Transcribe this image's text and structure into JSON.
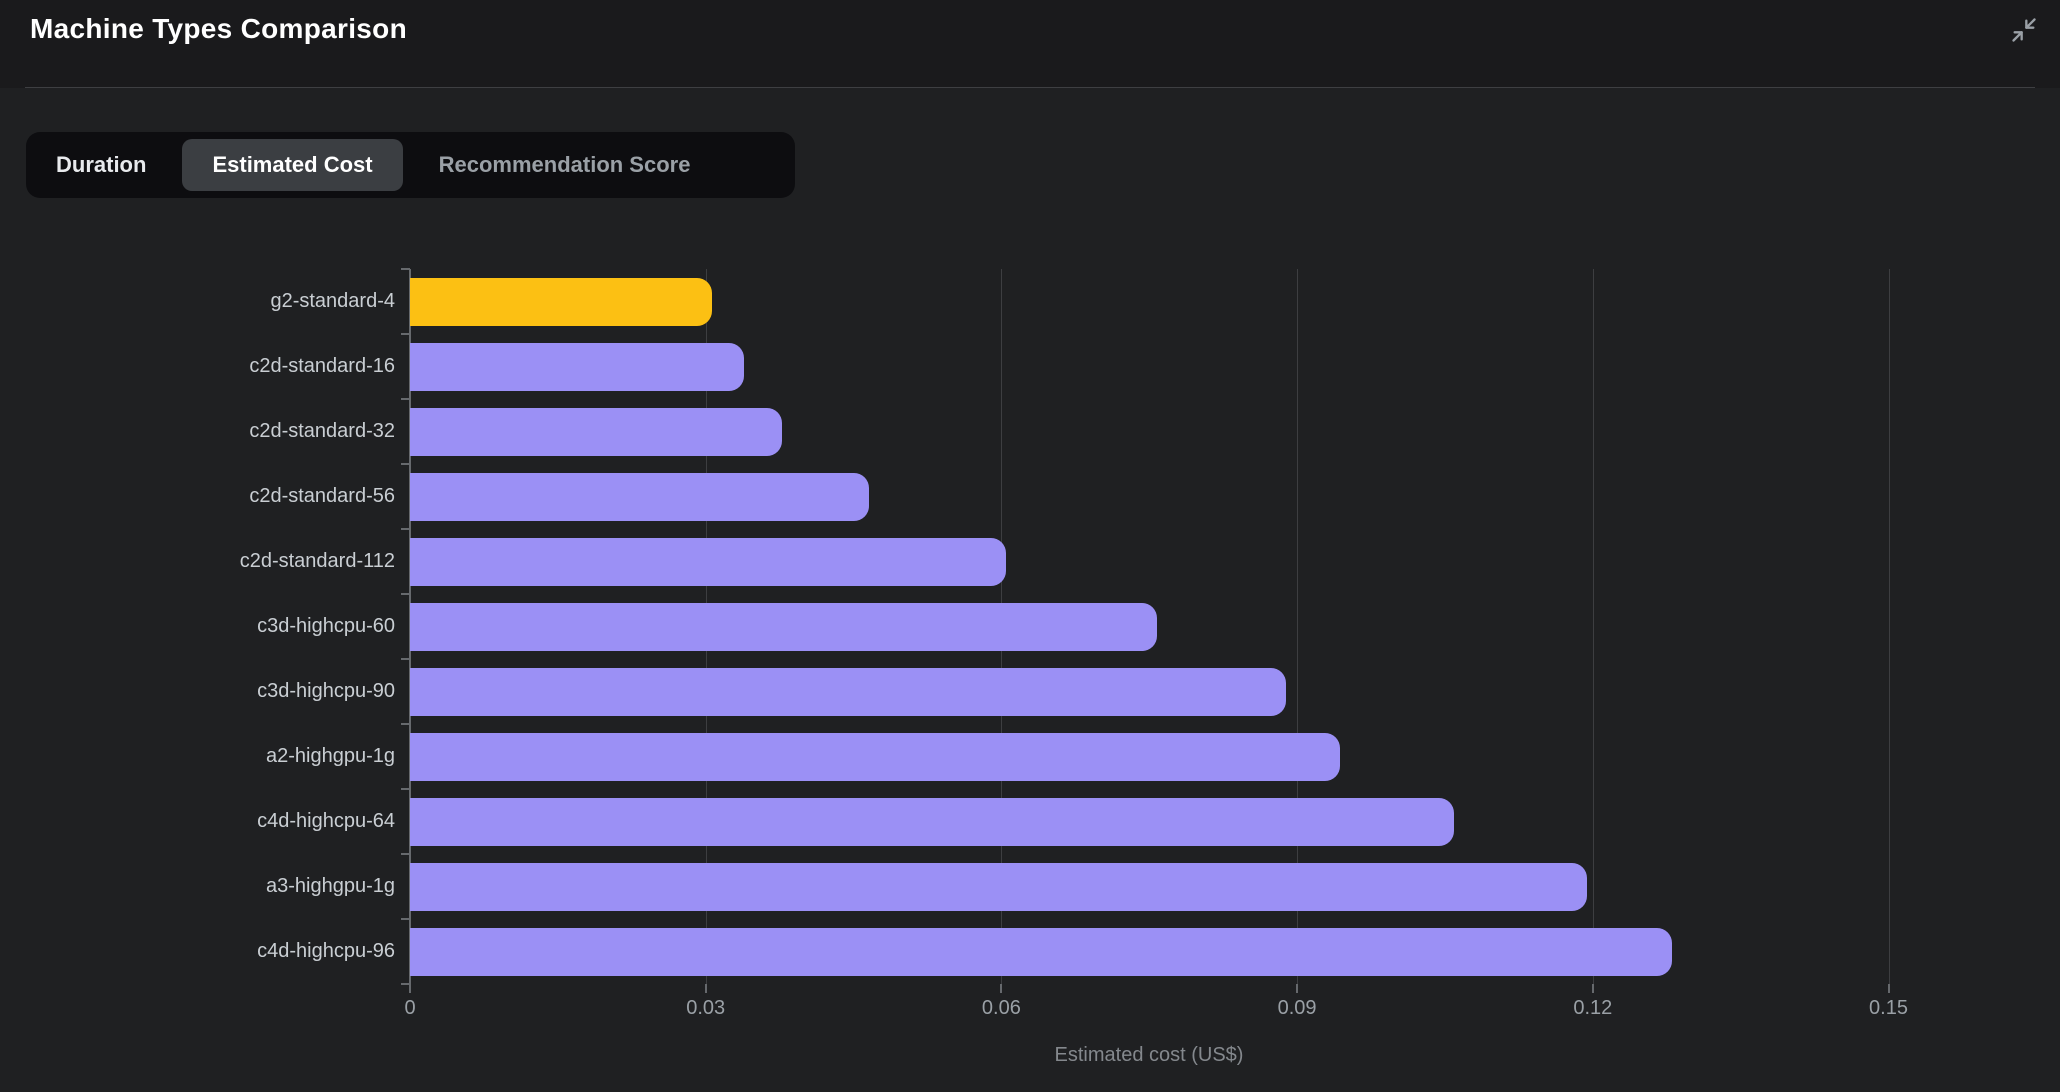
{
  "header": {
    "title": "Machine Types Comparison"
  },
  "icons": {
    "collapse": "two diagonal arrows pointing inward (minimize)"
  },
  "tabs": [
    {
      "label": "Duration",
      "selected": false
    },
    {
      "label": "Estimated Cost",
      "selected": true
    },
    {
      "label": "Recommendation Score",
      "selected": false
    }
  ],
  "colors": {
    "background": "#1f2022",
    "header_background": "#1a1a1c",
    "tabbar_background": "#0d0d10",
    "tab_selected_background": "#3b3e42",
    "bar_purple": "#9b90f5",
    "bar_gold": "#fcc013",
    "gridline": "#3d3e41",
    "axis": "#66696d"
  },
  "chart_data": {
    "type": "bar",
    "orientation": "horizontal",
    "title": "",
    "categories": [
      "g2-standard-4",
      "c2d-standard-16",
      "c2d-standard-32",
      "c2d-standard-56",
      "c2d-standard-112",
      "c3d-highcpu-60",
      "c3d-highcpu-90",
      "a2-highgpu-1g",
      "c4d-highcpu-64",
      "a3-highgpu-1g",
      "c4d-highcpu-96"
    ],
    "values": [
      0.0306,
      0.0339,
      0.0377,
      0.0466,
      0.0605,
      0.0758,
      0.0889,
      0.0944,
      0.1059,
      0.1194,
      0.128
    ],
    "xlabel": "Estimated cost (US$)",
    "ylabel": "",
    "xlim": [
      0,
      0.15
    ],
    "x_tick_values": [
      0,
      0.03,
      0.06,
      0.09,
      0.12,
      0.15
    ],
    "x_tick_labels": [
      "0",
      "0.03",
      "0.06",
      "0.09",
      "0.12",
      "0.15"
    ],
    "grid": true,
    "legend_position": "none",
    "bar_color": "#9b90f5",
    "highlight": {
      "index": 0,
      "category": "g2-standard-4",
      "color": "#fcc013"
    }
  }
}
